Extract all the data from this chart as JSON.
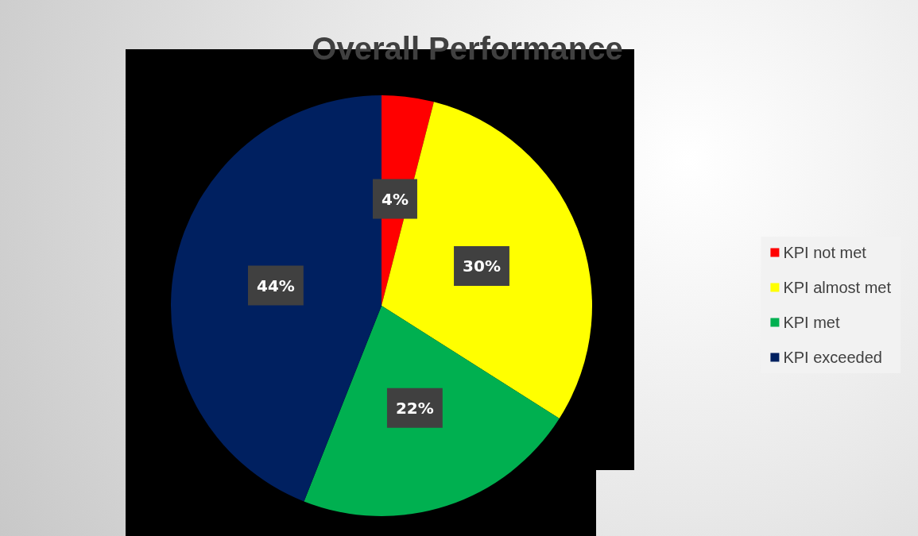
{
  "chart_data": {
    "type": "pie",
    "title": "Overall Performance",
    "categories": [
      "KPI not met",
      "KPI almost met",
      "KPI met",
      "KPI exceeded"
    ],
    "values": [
      4,
      30,
      22,
      44
    ],
    "colors": [
      "#ff0000",
      "#ffff00",
      "#00b050",
      "#002060"
    ],
    "value_labels": [
      "4%",
      "30%",
      "22%",
      "44%"
    ],
    "legend": "right"
  }
}
